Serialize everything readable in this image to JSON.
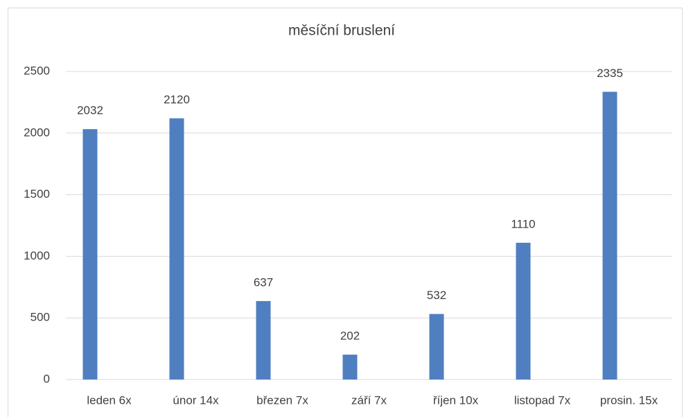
{
  "chart_data": {
    "type": "bar",
    "title": "měsíční bruslení",
    "categories": [
      "leden 6x",
      "únor 14x",
      "březen 7x",
      "září 7x",
      "říjen 10x",
      "listopad 7x",
      "prosin. 15x"
    ],
    "values": [
      2032,
      2120,
      637,
      202,
      532,
      1110,
      2335
    ],
    "color": "#4f7fc0",
    "ylim": [
      0,
      2500
    ],
    "yticks": [
      0,
      500,
      1000,
      1500,
      2000,
      2500
    ],
    "grid": true
  }
}
